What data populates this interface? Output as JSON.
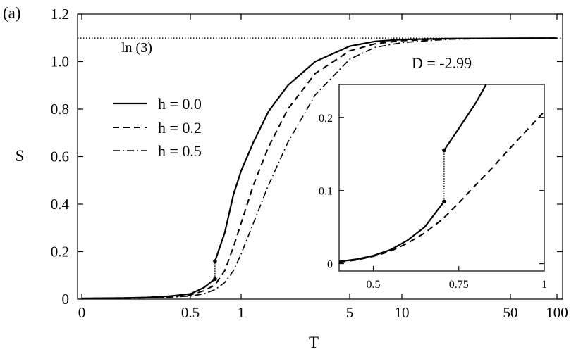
{
  "panel_label": "(a)",
  "chart_data": [
    {
      "id": "main",
      "type": "line",
      "xlabel": "T",
      "ylabel": "S",
      "xscale": "log-like",
      "xlim": [
        0,
        100
      ],
      "ylim": [
        0,
        1.2
      ],
      "xticks": [
        {
          "v": 0,
          "label": "0"
        },
        {
          "v": 0.5,
          "label": "0.5"
        },
        {
          "v": 1,
          "label": "1"
        },
        {
          "v": 5,
          "label": "5"
        },
        {
          "v": 10,
          "label": "10"
        },
        {
          "v": 50,
          "label": "50"
        },
        {
          "v": 100,
          "label": "100"
        }
      ],
      "yticks": [
        {
          "v": 0,
          "label": "0"
        },
        {
          "v": 0.2,
          "label": "0.2"
        },
        {
          "v": 0.4,
          "label": "0.4"
        },
        {
          "v": 0.6,
          "label": "0.6"
        },
        {
          "v": 0.8,
          "label": "0.8"
        },
        {
          "v": 1.0,
          "label": "1.0"
        },
        {
          "v": 1.2,
          "label": "1.2"
        }
      ],
      "grid": false,
      "legend_position": "upper-left",
      "reference_line": {
        "y": 1.0986,
        "label": "ln (3)",
        "style": "dotted"
      },
      "parameter_label": "D = -2.99",
      "transition": {
        "x": 0.7,
        "y_low": 0.085,
        "y_high": 0.16,
        "style": "dotted"
      },
      "series": [
        {
          "name": "h = 0.0",
          "style": "solid",
          "points": [
            [
              0,
              0.003
            ],
            [
              0.1,
              0.004
            ],
            [
              0.2,
              0.005
            ],
            [
              0.3,
              0.007
            ],
            [
              0.4,
              0.012
            ],
            [
              0.5,
              0.022
            ],
            [
              0.6,
              0.048
            ],
            [
              0.7,
              0.085
            ]
          ]
        },
        {
          "name": "h = 0.0",
          "style": "solid",
          "branch": "upper",
          "points": [
            [
              0.7,
              0.16
            ],
            [
              0.8,
              0.28
            ],
            [
              0.9,
              0.44
            ],
            [
              1,
              0.54
            ],
            [
              1.2,
              0.66
            ],
            [
              1.5,
              0.79
            ],
            [
              2,
              0.9
            ],
            [
              3,
              1.0
            ],
            [
              5,
              1.065
            ],
            [
              7,
              1.085
            ],
            [
              10,
              1.093
            ],
            [
              20,
              1.097
            ],
            [
              50,
              1.098
            ],
            [
              100,
              1.0986
            ]
          ]
        },
        {
          "name": "h = 0.2",
          "style": "dashed",
          "points": [
            [
              0,
              0.003
            ],
            [
              0.1,
              0.004
            ],
            [
              0.2,
              0.005
            ],
            [
              0.3,
              0.006
            ],
            [
              0.4,
              0.01
            ],
            [
              0.5,
              0.018
            ],
            [
              0.6,
              0.035
            ],
            [
              0.7,
              0.06
            ],
            [
              0.8,
              0.12
            ],
            [
              0.9,
              0.22
            ],
            [
              1,
              0.32
            ],
            [
              1.2,
              0.48
            ],
            [
              1.5,
              0.64
            ],
            [
              2,
              0.8
            ],
            [
              3,
              0.95
            ],
            [
              5,
              1.045
            ],
            [
              7,
              1.075
            ],
            [
              10,
              1.088
            ],
            [
              20,
              1.096
            ],
            [
              50,
              1.098
            ],
            [
              100,
              1.0986
            ]
          ]
        },
        {
          "name": "h = 0.5",
          "style": "dash-dot",
          "points": [
            [
              0,
              0.002
            ],
            [
              0.1,
              0.003
            ],
            [
              0.2,
              0.004
            ],
            [
              0.3,
              0.005
            ],
            [
              0.4,
              0.008
            ],
            [
              0.5,
              0.013
            ],
            [
              0.6,
              0.022
            ],
            [
              0.7,
              0.04
            ],
            [
              0.8,
              0.07
            ],
            [
              0.9,
              0.12
            ],
            [
              1,
              0.19
            ],
            [
              1.2,
              0.32
            ],
            [
              1.5,
              0.48
            ],
            [
              2,
              0.66
            ],
            [
              3,
              0.86
            ],
            [
              5,
              1.01
            ],
            [
              7,
              1.06
            ],
            [
              10,
              1.08
            ],
            [
              20,
              1.094
            ],
            [
              50,
              1.098
            ],
            [
              100,
              1.0986
            ]
          ]
        }
      ]
    },
    {
      "id": "inset",
      "type": "line",
      "xlim": [
        0.4,
        1.0
      ],
      "ylim": [
        -0.01,
        0.245
      ],
      "xticks": [
        {
          "v": 0.5,
          "label": "0.5"
        },
        {
          "v": 0.75,
          "label": "0.75"
        },
        {
          "v": 1,
          "label": "1"
        }
      ],
      "yticks": [
        {
          "v": 0,
          "label": "0"
        },
        {
          "v": 0.1,
          "label": "0.1"
        },
        {
          "v": 0.2,
          "label": "0.2"
        }
      ],
      "grid": false,
      "transition": {
        "x": 0.707,
        "y_low": 0.085,
        "y_high": 0.155,
        "style": "dotted"
      },
      "series": [
        {
          "name": "h = 0.0",
          "style": "solid",
          "points": [
            [
              0.4,
              0.003
            ],
            [
              0.45,
              0.006
            ],
            [
              0.5,
              0.011
            ],
            [
              0.55,
              0.019
            ],
            [
              0.6,
              0.032
            ],
            [
              0.65,
              0.05
            ],
            [
              0.707,
              0.085
            ]
          ]
        },
        {
          "name": "h = 0.0",
          "style": "solid",
          "branch": "upper",
          "points": [
            [
              0.707,
              0.155
            ],
            [
              0.75,
              0.185
            ],
            [
              0.8,
              0.22
            ],
            [
              0.83,
              0.245
            ]
          ]
        },
        {
          "name": "h = 0.2",
          "style": "dashed",
          "points": [
            [
              0.4,
              0.002
            ],
            [
              0.45,
              0.005
            ],
            [
              0.5,
              0.01
            ],
            [
              0.55,
              0.017
            ],
            [
              0.6,
              0.028
            ],
            [
              0.65,
              0.042
            ],
            [
              0.7,
              0.06
            ],
            [
              0.75,
              0.083
            ],
            [
              0.8,
              0.108
            ],
            [
              0.85,
              0.132
            ],
            [
              0.9,
              0.158
            ],
            [
              0.95,
              0.183
            ],
            [
              1.0,
              0.208
            ]
          ]
        }
      ]
    }
  ]
}
